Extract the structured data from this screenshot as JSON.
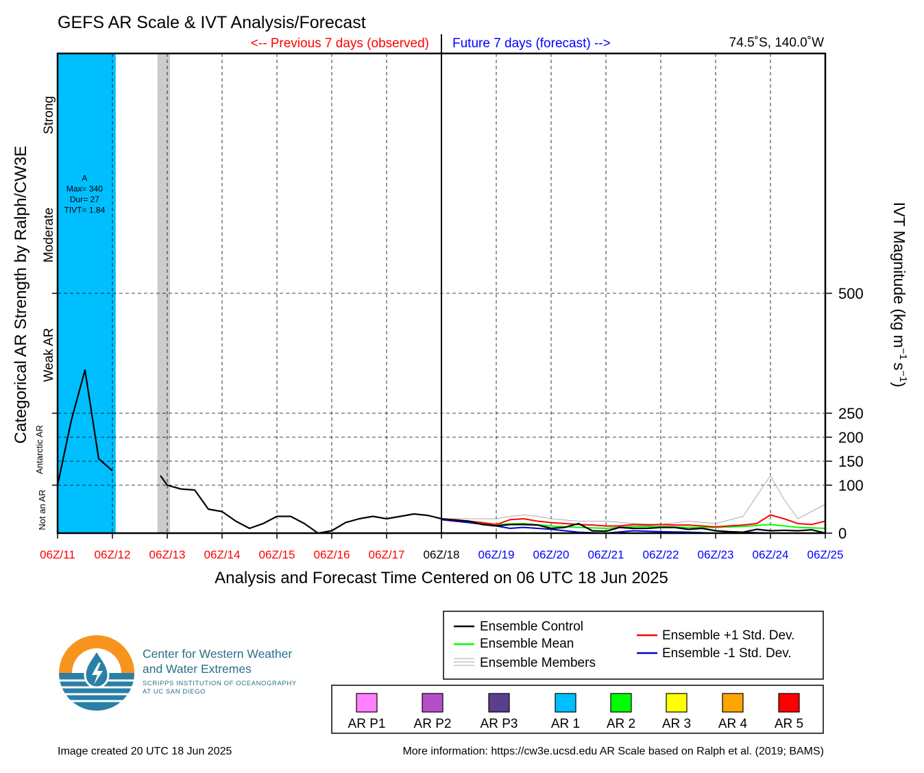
{
  "title": "GEFS AR Scale & IVT Analysis/Forecast",
  "header_prev": "<-- Previous 7 days (observed)",
  "header_future": "Future 7 days (forecast) -->",
  "location": "74.5˚S, 140.0˚W",
  "xlabel": "Analysis and Forecast Time Centered on 06 UTC 18 Jun 2025",
  "left_axis_label": "Categorical AR Strength by Ralph/CW3E",
  "right_axis_label_parts": [
    "IVT Magnitude (kg m",
    "−1",
    "s",
    "−1",
    ")"
  ],
  "categories": [
    "Not an AR",
    "Antarctic AR",
    "Weak AR",
    "Moderate",
    "Strong"
  ],
  "colors": {
    "ar1": "#00bfff",
    "shade": "#cccccc",
    "control": "#000000",
    "mean": "#00ff00",
    "plus_std": "#ff0000",
    "minus_std": "#0000cc",
    "members": "#aaaaaa",
    "past_label": "#ff0000",
    "present_label": "#000000",
    "future_label": "#0000ff"
  },
  "chart_data": {
    "type": "line",
    "x_tick_labels": [
      "06Z/11",
      "06Z/12",
      "06Z/13",
      "06Z/14",
      "06Z/15",
      "06Z/16",
      "06Z/17",
      "06Z/18",
      "06Z/19",
      "06Z/20",
      "06Z/21",
      "06Z/22",
      "06Z/23",
      "06Z/24",
      "06Z/25"
    ],
    "x_range": [
      "06Z/11",
      "06Z/25"
    ],
    "y_ticks": [
      0,
      100,
      150,
      200,
      250,
      500
    ],
    "y_range": [
      0,
      1000
    ],
    "events": [
      {
        "category": "AR 1",
        "start_day": 0,
        "end_day": 1.06,
        "label": [
          "A",
          "Max= 340",
          "Dur= 27",
          "TIVT= 1.84"
        ]
      }
    ],
    "gray_band": {
      "start_day": 1.82,
      "end_day": 2.05
    },
    "series": [
      {
        "name": "Ensemble Control",
        "x": [
          0,
          0.25,
          0.5,
          0.75,
          1.0,
          null,
          1.875,
          2.0,
          2.25,
          2.5,
          2.75,
          3.0,
          3.25,
          3.5,
          3.75,
          4.0,
          4.25,
          4.5,
          4.75,
          5.0,
          5.25,
          5.5,
          5.75,
          6.0,
          6.25,
          6.5,
          6.75,
          7.0,
          7.25,
          7.5,
          7.75,
          8.0,
          8.25,
          8.5,
          8.75,
          9.0,
          9.25,
          9.5,
          9.75,
          10.0,
          10.25,
          10.5,
          10.75,
          11.0,
          11.25,
          11.5,
          11.75,
          12.0,
          12.25,
          12.5,
          12.75,
          13.0,
          13.25,
          13.5,
          13.75,
          14.0
        ],
        "y": [
          100,
          235,
          340,
          155,
          130,
          null,
          120,
          100,
          92,
          90,
          50,
          45,
          25,
          10,
          20,
          35,
          35,
          20,
          0,
          5,
          22,
          30,
          35,
          30,
          35,
          40,
          37,
          30,
          27,
          25,
          18,
          15,
          18,
          18,
          17,
          10,
          12,
          20,
          5,
          4,
          12,
          10,
          10,
          12,
          12,
          8,
          10,
          5,
          3,
          2,
          8,
          5,
          6,
          5,
          7,
          0
        ]
      },
      {
        "name": "Ensemble Mean",
        "x": [
          7.0,
          7.5,
          8.0,
          8.5,
          9.0,
          9.5,
          10.0,
          10.5,
          11.0,
          11.5,
          12.0,
          12.5,
          13.0,
          13.5,
          14.0
        ],
        "y": [
          30,
          25,
          18,
          20,
          15,
          12,
          10,
          14,
          14,
          12,
          12,
          14,
          18,
          12,
          10
        ]
      },
      {
        "name": "Ensemble +1 Std. Dev.",
        "x": [
          7.0,
          7.25,
          7.5,
          7.75,
          8.0,
          8.25,
          8.5,
          8.75,
          9.0,
          9.25,
          9.5,
          9.75,
          10.0,
          10.25,
          10.5,
          10.75,
          11.0,
          11.25,
          11.5,
          11.75,
          12.0,
          12.25,
          12.5,
          12.75,
          13.0,
          13.25,
          13.5,
          13.75,
          14.0
        ],
        "y": [
          30,
          28,
          25,
          22,
          18,
          28,
          30,
          25,
          22,
          20,
          18,
          17,
          15,
          15,
          18,
          17,
          18,
          17,
          17,
          15,
          13,
          15,
          17,
          20,
          38,
          30,
          20,
          18,
          25
        ]
      },
      {
        "name": "Ensemble -1 Std. Dev.",
        "x": [
          7.0,
          7.5,
          8.0,
          8.25,
          8.5,
          9.0,
          9.5,
          10.0,
          10.5,
          11.0,
          11.5,
          12.0,
          12.5,
          13.0,
          13.5,
          14.0
        ],
        "y": [
          28,
          22,
          15,
          10,
          12,
          8,
          2,
          0,
          5,
          3,
          2,
          0,
          2,
          0,
          0,
          0
        ]
      },
      {
        "name": "Ensemble Members",
        "x": [
          7.0,
          7.5,
          8.0,
          8.25,
          8.5,
          8.75,
          9.0,
          9.5,
          10.0,
          10.5,
          11.0,
          11.5,
          12.0,
          12.5,
          13.0,
          13.25,
          13.5,
          14.0
        ],
        "y": [
          30,
          30,
          30,
          35,
          38,
          35,
          30,
          25,
          25,
          20,
          18,
          25,
          20,
          35,
          120,
          70,
          30,
          60
        ]
      }
    ]
  },
  "legend": {
    "control": "Ensemble Control",
    "mean": "Ensemble Mean",
    "members": "Ensemble Members",
    "plus": "Ensemble +1 Std. Dev.",
    "minus": "Ensemble -1 Std. Dev."
  },
  "scale_legend": [
    {
      "label": "AR P1",
      "color": "#ff80ff"
    },
    {
      "label": "AR P2",
      "color": "#b44ec8"
    },
    {
      "label": "AR P3",
      "color": "#5a3f8c"
    },
    {
      "label": "AR 1",
      "color": "#00bfff"
    },
    {
      "label": "AR 2",
      "color": "#00ff00"
    },
    {
      "label": "AR 3",
      "color": "#ffff00"
    },
    {
      "label": "AR 4",
      "color": "#ffa500"
    },
    {
      "label": "AR 5",
      "color": "#ff0000"
    }
  ],
  "logo": {
    "title_line1": "Center for Western Weather",
    "title_line2": "and Water Extremes",
    "sub_line1": "SCRIPPS INSTITUTION OF OCEANOGRAPHY",
    "sub_line2": "AT UC SAN DIEGO"
  },
  "footer": {
    "created": "Image created 20 UTC 18 Jun 2025",
    "info": "More information: https://cw3e.ucsd.edu AR Scale based on Ralph et al. (2019; BAMS)"
  }
}
